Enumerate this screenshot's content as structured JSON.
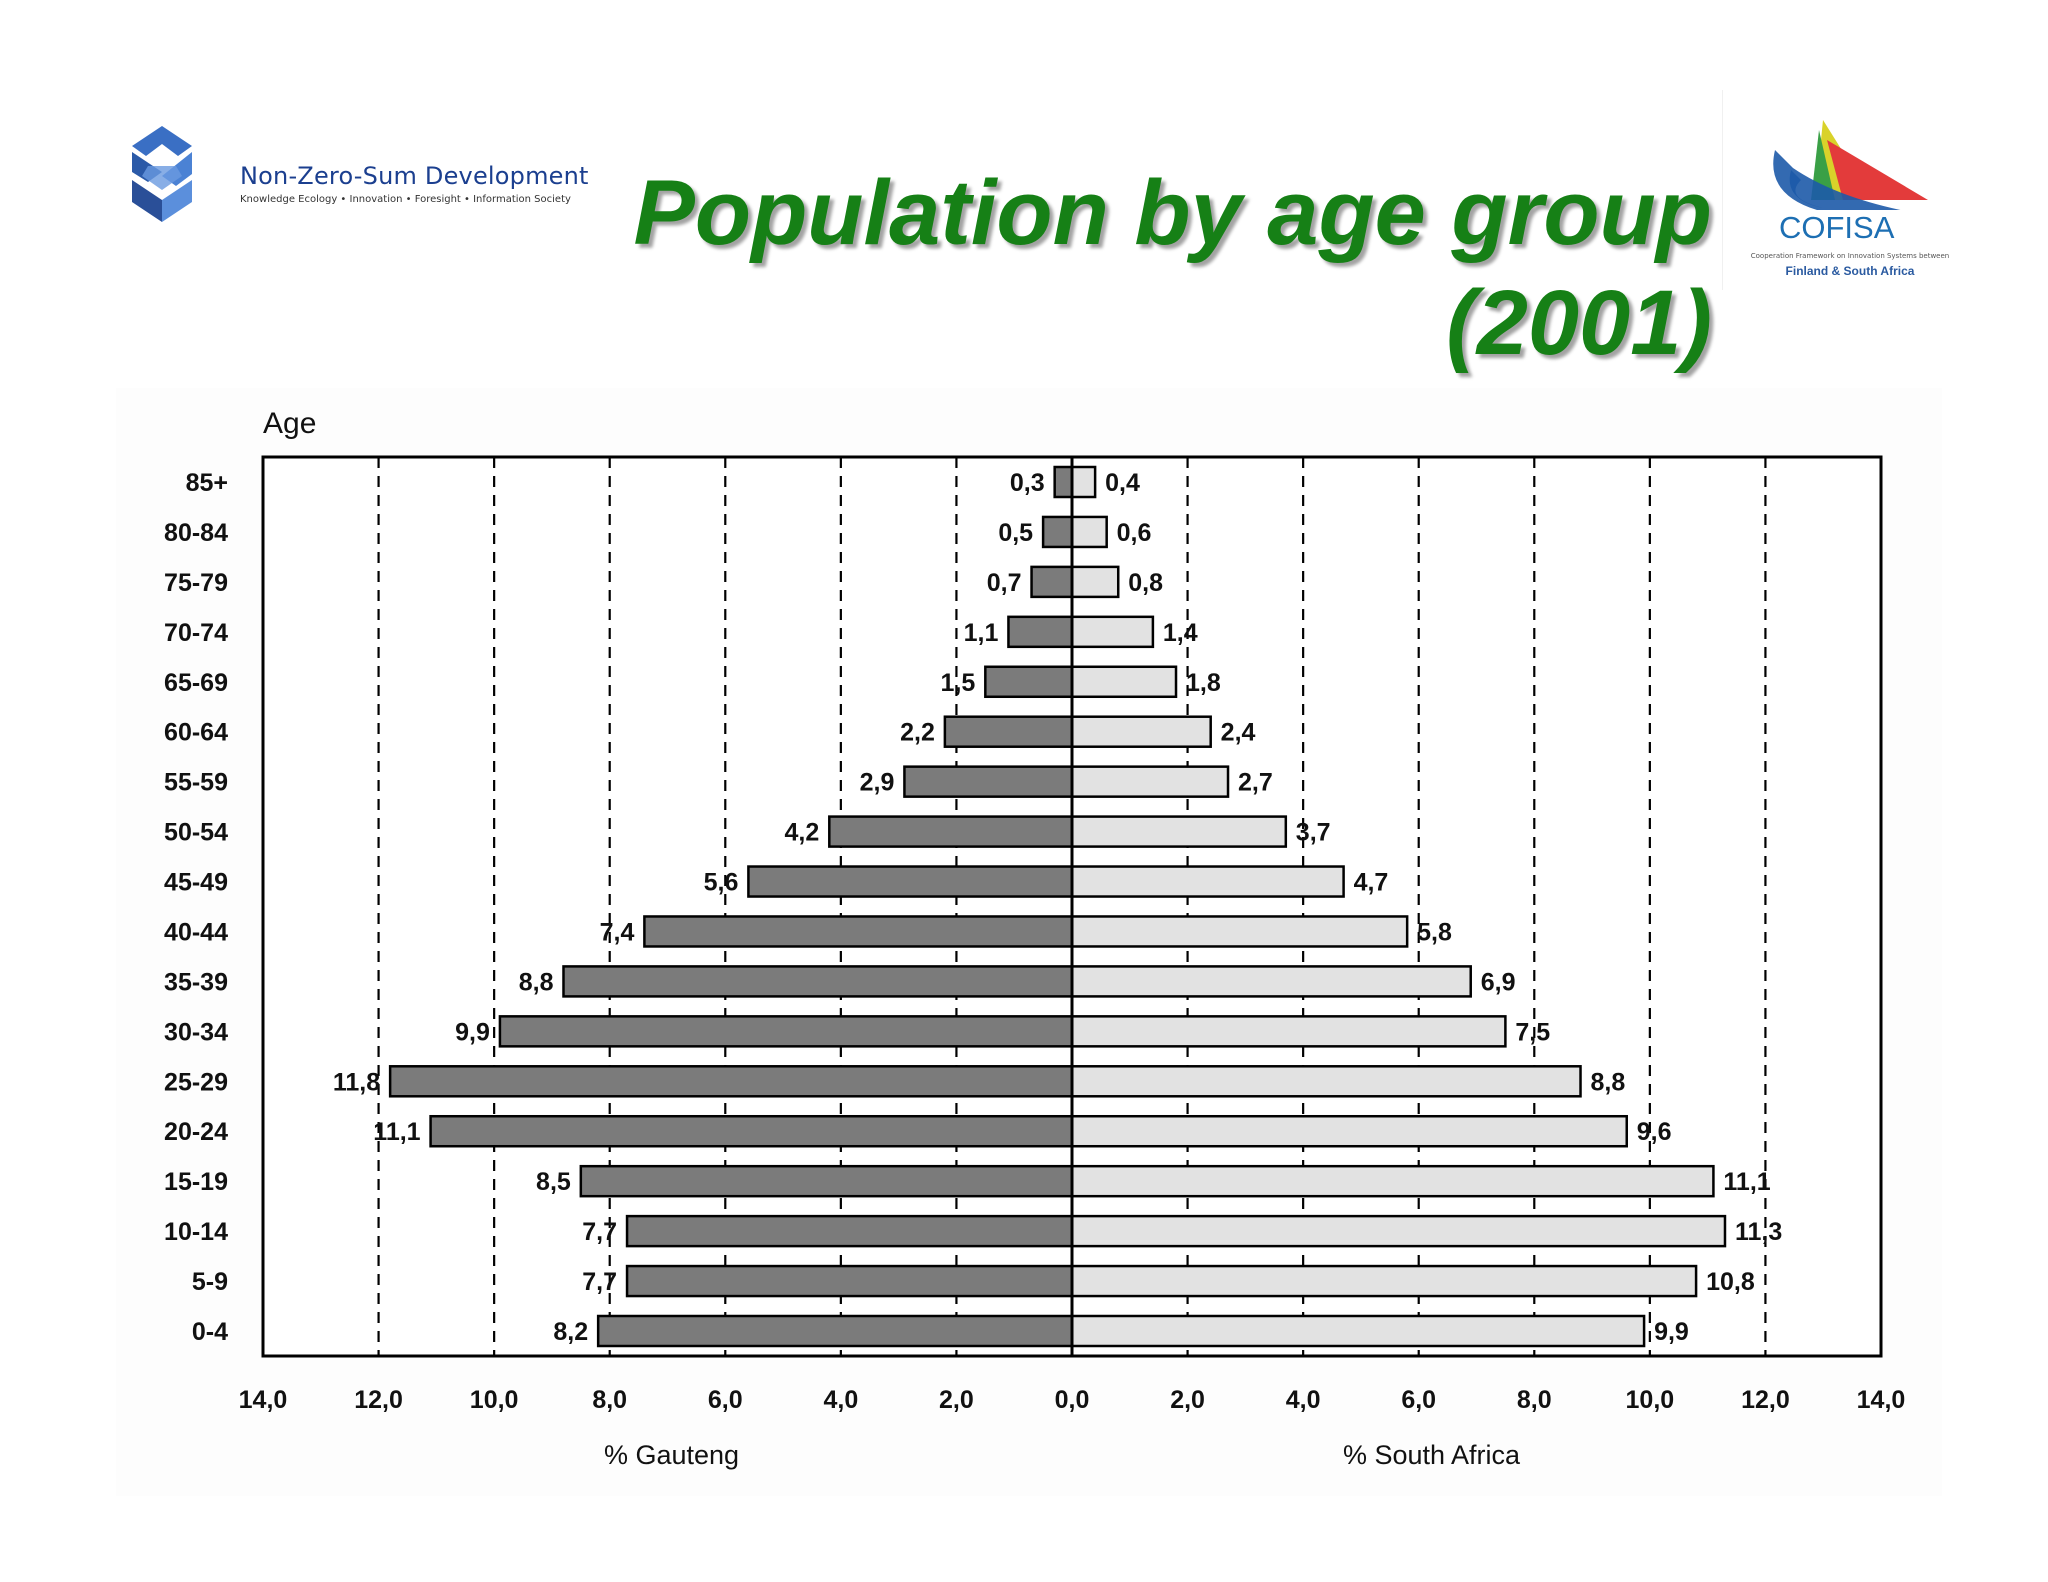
{
  "header": {
    "title_line1": "Population by age group",
    "title_line2": "(2001)",
    "left_logo": {
      "name": "Non-Zero-Sum Development",
      "tagline": "Knowledge Ecology • Innovation • Foresight • Information Society"
    },
    "right_logo": {
      "name": "COFISA",
      "tagline": "Cooperation Framework on Innovation Systems between",
      "tagline2": "Finland & South Africa"
    }
  },
  "colors": {
    "title": "#168016",
    "gauteng_bar": "#7b7b7b",
    "south_africa_bar": "#e2e2e2"
  },
  "chart_data": {
    "type": "bar",
    "orientation": "horizontal",
    "subtype": "population-pyramid",
    "title": "",
    "ylabel": "Age",
    "categories": [
      "85+",
      "80-84",
      "75-79",
      "70-74",
      "65-69",
      "60-64",
      "55-59",
      "50-54",
      "45-49",
      "40-44",
      "35-39",
      "30-34",
      "25-29",
      "20-24",
      "15-19",
      "10-14",
      "5-9",
      "0-4"
    ],
    "series": [
      {
        "name": "% Gauteng",
        "side": "left",
        "values": [
          0.3,
          0.5,
          0.7,
          1.1,
          1.5,
          2.2,
          2.9,
          4.2,
          5.6,
          7.4,
          8.8,
          9.9,
          11.8,
          11.1,
          8.5,
          7.7,
          7.7,
          8.2
        ],
        "labels": [
          "0,3",
          "0,5",
          "0,7",
          "1,1",
          "1,5",
          "2,2",
          "2,9",
          "4,2",
          "5,6",
          "7,4",
          "8,8",
          "9,9",
          "11,8",
          "11,1",
          "8,5",
          "7,7",
          "7,7",
          "8,2"
        ]
      },
      {
        "name": "% South Africa",
        "side": "right",
        "values": [
          0.4,
          0.6,
          0.8,
          1.4,
          1.8,
          2.4,
          2.7,
          3.7,
          4.7,
          5.8,
          6.9,
          7.5,
          8.8,
          9.6,
          11.1,
          11.3,
          10.8,
          9.9
        ],
        "labels": [
          "0,4",
          "0,6",
          "0,8",
          "1,4",
          "1,8",
          "2,4",
          "2,7",
          "3,7",
          "4,7",
          "5,8",
          "6,9",
          "7,5",
          "8,8",
          "9,6",
          "11,1",
          "11,3",
          "10,8",
          "9,9"
        ]
      }
    ],
    "xlim": [
      -14,
      14
    ],
    "xticks": [
      -14,
      -12,
      -10,
      -8,
      -6,
      -4,
      -2,
      0,
      2,
      4,
      6,
      8,
      10,
      12,
      14
    ],
    "xtick_labels": [
      "14,0",
      "12,0",
      "10,0",
      "8,0",
      "6,0",
      "4,0",
      "2,0",
      "0,0",
      "2,0",
      "4,0",
      "6,0",
      "8,0",
      "10,0",
      "12,0",
      "14,0"
    ],
    "grid": "vertical-dashed"
  }
}
